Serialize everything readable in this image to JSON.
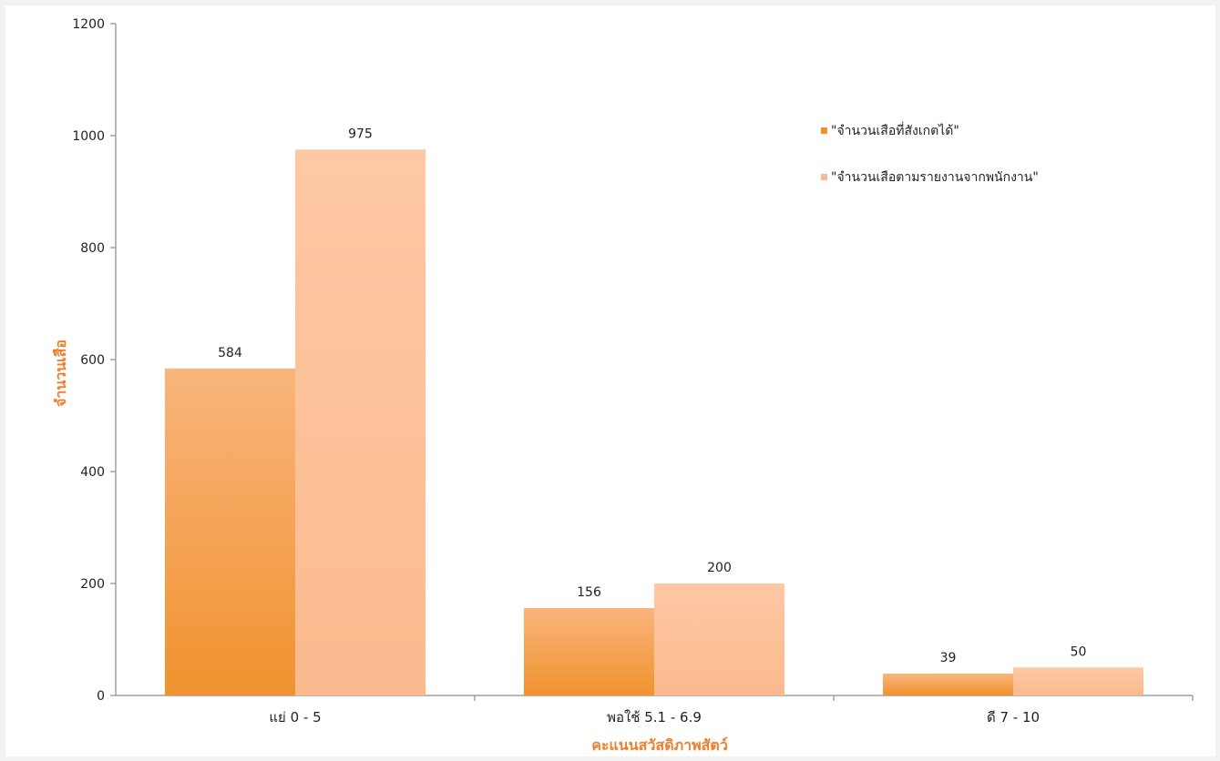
{
  "chart_data": {
    "type": "bar",
    "categories": [
      "แย่ 0 - 5",
      "พอใช้ 5.1 - 6.9",
      "ดี 7 - 10"
    ],
    "series": [
      {
        "name": "\"จำนวนเสือที่สังเกตได้\"",
        "values": [
          584,
          156,
          39
        ],
        "color_top": "#f9b57c",
        "color_bottom": "#f0922f"
      },
      {
        "name": "\"จำนวนเสือตามรายงานจากพนักงาน\"",
        "values": [
          975,
          200,
          50
        ],
        "color_top": "#fdc8a3",
        "color_bottom": "#fbba8e"
      }
    ],
    "xlabel": "คะแนนสวัสดิภาพสัตว์",
    "ylabel": "จำนวนเสือ",
    "ylim": [
      0,
      1200
    ],
    "yticks": [
      0,
      200,
      400,
      600,
      800,
      1000,
      1200
    ],
    "grid": false,
    "legend_position": "top-right",
    "data_labels": true
  }
}
